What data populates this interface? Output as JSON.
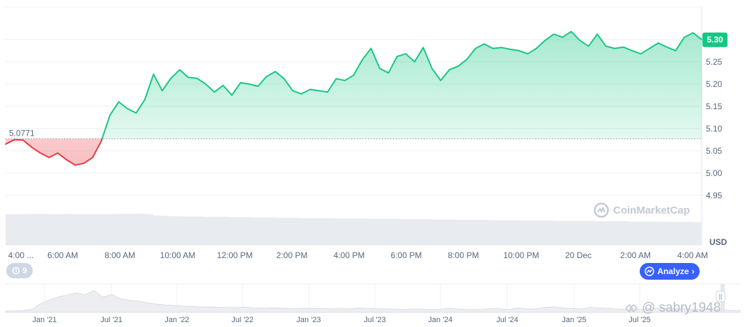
{
  "chart_data": {
    "type": "area",
    "series": [
      {
        "x": [
          "3:00 AM",
          "3:30 AM",
          "4:00 AM",
          "4:30 AM",
          "5:00 AM",
          "5:20 AM",
          "5:40 AM",
          "6:00 AM",
          "6:20 AM",
          "6:40 AM",
          "7:00 AM",
          "7:10 AM",
          "7:20 AM",
          "7:30 AM",
          "7:40 AM",
          "7:50 AM",
          "8:00 AM",
          "8:20 AM",
          "8:40 AM",
          "9:00 AM",
          "9:20 AM",
          "9:40 AM",
          "10:00 AM",
          "10:20 AM",
          "10:40 AM",
          "11:00 AM",
          "11:20 AM",
          "11:40 AM",
          "12:00 PM",
          "12:20 PM",
          "12:40 PM",
          "1:00 PM",
          "1:20 PM",
          "1:40 PM",
          "2:00 PM",
          "2:20 PM",
          "2:40 PM",
          "3:00 PM",
          "3:10 PM",
          "3:20 PM",
          "3:30 PM",
          "3:40 PM",
          "4:00 PM",
          "4:20 PM",
          "4:40 PM",
          "5:00 PM",
          "5:20 PM",
          "5:40 PM",
          "6:00 PM",
          "6:20 PM",
          "6:40 PM",
          "7:00 PM",
          "7:20 PM",
          "7:40 PM",
          "8:00 PM",
          "8:20 PM",
          "8:40 PM",
          "9:00 PM",
          "9:20 PM",
          "9:40 PM",
          "10:00 PM",
          "10:20 PM",
          "10:40 PM",
          "11:00 PM",
          "11:20 PM",
          "11:40 PM",
          "12:00 AM",
          "12:20 AM",
          "12:40 AM",
          "1:00 AM",
          "1:20 AM",
          "1:40 AM",
          "2:00 AM",
          "2:20 AM",
          "2:40 AM",
          "3:00 AM",
          "3:20 AM",
          "3:40 AM",
          "4:00 AM",
          "4:20 AM",
          "4:40 AM"
        ],
        "values": [
          5.065,
          5.075,
          5.074,
          5.058,
          5.045,
          5.035,
          5.045,
          5.03,
          5.018,
          5.022,
          5.035,
          5.072,
          5.13,
          5.16,
          5.145,
          5.135,
          5.165,
          5.222,
          5.185,
          5.213,
          5.232,
          5.215,
          5.213,
          5.2,
          5.182,
          5.197,
          5.175,
          5.203,
          5.2,
          5.195,
          5.217,
          5.228,
          5.212,
          5.185,
          5.178,
          5.188,
          5.185,
          5.182,
          5.212,
          5.208,
          5.22,
          5.255,
          5.28,
          5.235,
          5.225,
          5.262,
          5.268,
          5.25,
          5.282,
          5.235,
          5.208,
          5.232,
          5.24,
          5.255,
          5.28,
          5.29,
          5.28,
          5.282,
          5.278,
          5.275,
          5.268,
          5.28,
          5.298,
          5.312,
          5.305,
          5.318,
          5.298,
          5.285,
          5.312,
          5.285,
          5.28,
          5.283,
          5.275,
          5.268,
          5.28,
          5.292,
          5.283,
          5.275,
          5.305,
          5.315,
          5.3
        ],
        "color_above": "#16c784",
        "color_below": "#ea3943"
      }
    ],
    "y_ticks": [
      "5.25",
      "5.20",
      "5.15",
      "5.10",
      "5.05",
      "5.00",
      "4.95"
    ],
    "x_ticks": [
      "4:00 ...",
      "6:00 AM",
      "8:00 AM",
      "10:00 AM",
      "12:00 PM",
      "2:00 PM",
      "4:00 PM",
      "6:00 PM",
      "8:00 PM",
      "10:00 PM",
      "20 Dec",
      "2:00 AM",
      "4:00 AM"
    ],
    "baseline": 5.0771,
    "baseline_label": "5.0771",
    "current_price_label": "5.30",
    "ylabel": "USD",
    "ylim": [
      4.92,
      5.345
    ],
    "grid": true,
    "volume_values": [
      0.92,
      0.92,
      0.92,
      0.93,
      0.93,
      0.92,
      0.92,
      0.93,
      0.92,
      0.92,
      0.92,
      0.92,
      0.92,
      0.93,
      0.93,
      0.93,
      0.94,
      0.92,
      0.88,
      0.87,
      0.86,
      0.86,
      0.85,
      0.85,
      0.84,
      0.84,
      0.84,
      0.83,
      0.83,
      0.83,
      0.82,
      0.82,
      0.82,
      0.81,
      0.81,
      0.81,
      0.8,
      0.8,
      0.8,
      0.8,
      0.79,
      0.79,
      0.79,
      0.79,
      0.78,
      0.78,
      0.78,
      0.78,
      0.77,
      0.77,
      0.77,
      0.77,
      0.76,
      0.76,
      0.76,
      0.75,
      0.75,
      0.75,
      0.75,
      0.74,
      0.74,
      0.74,
      0.74,
      0.73,
      0.73,
      0.73,
      0.73,
      0.72,
      0.72,
      0.72,
      0.72,
      0.72,
      0.71,
      0.71,
      0.71,
      0.71,
      0.7,
      0.7,
      0.7,
      0.7,
      0.69,
      0.69,
      0.69,
      0.69,
      0.68
    ]
  },
  "navigator": {
    "labels": [
      "Jan '21",
      "Jul '21",
      "Jan '22",
      "Jul '22",
      "Jan '23",
      "Jul '23",
      "Jan '24",
      "Jul '24",
      "Jan '25",
      "Jul '25"
    ],
    "values": [
      0.05,
      0.06,
      0.08,
      0.12,
      0.35,
      0.5,
      0.62,
      0.7,
      0.78,
      0.7,
      0.88,
      0.6,
      0.72,
      0.55,
      0.48,
      0.45,
      0.38,
      0.34,
      0.3,
      0.28,
      0.25,
      0.24,
      0.22,
      0.22,
      0.2,
      0.2,
      0.19,
      0.21,
      0.18,
      0.17,
      0.18,
      0.17,
      0.16,
      0.15,
      0.17,
      0.16,
      0.15,
      0.14,
      0.15,
      0.14,
      0.18,
      0.16,
      0.15,
      0.14,
      0.13,
      0.12,
      0.14,
      0.13,
      0.12,
      0.12,
      0.16,
      0.14,
      0.12,
      0.11,
      0.12,
      0.16,
      0.14,
      0.12,
      0.18,
      0.14,
      0.14,
      0.2,
      0.22,
      0.18,
      0.16,
      0.14,
      0.2,
      0.18,
      0.16,
      0.14,
      0.12,
      0.11,
      0.12,
      0.18,
      0.15,
      0.14,
      0.16,
      0.14,
      0.12,
      0.11,
      0.1,
      0.09,
      0.08,
      0.08
    ]
  },
  "controls": {
    "history_count": "9",
    "analyze_label": "Analyze"
  },
  "watermark": {
    "brand": "CoinMarketCap",
    "user": "@ sabry1948"
  },
  "colors": {
    "up": "#16c784",
    "down": "#ea3943",
    "accent": "#3861fb",
    "grid": "#eef0f4"
  },
  "icons": {
    "history": "history-clock-icon",
    "analyze": "analyze-chart-icon",
    "chevron": "chevron-right-icon",
    "logo": "coinmarketcap-logo-icon",
    "handle": "navigator-handle-icon"
  }
}
